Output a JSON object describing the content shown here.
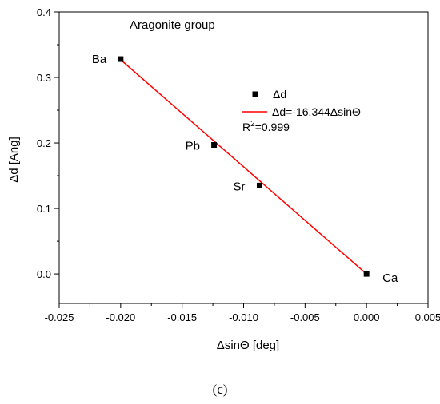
{
  "chart_data": {
    "type": "scatter",
    "title": "",
    "annotation": "Aragonite group",
    "xlabel": "ΔsinΘ [deg]",
    "ylabel": "Δd [Ang]",
    "xlim": [
      -0.025,
      0.005
    ],
    "ylim": [
      -0.045,
      0.4
    ],
    "xticks": [
      "-0.025",
      "-0.020",
      "-0.015",
      "-0.010",
      "-0.005",
      "0.000",
      "0.005"
    ],
    "xtick_values": [
      -0.025,
      -0.02,
      -0.015,
      -0.01,
      -0.005,
      0.0,
      0.005
    ],
    "yticks": [
      "0.0",
      "0.1",
      "0.2",
      "0.3",
      "0.4"
    ],
    "ytick_values": [
      0.0,
      0.1,
      0.2,
      0.3,
      0.4
    ],
    "grid": false,
    "legend_position": "top-right",
    "series": [
      {
        "name": "Δd",
        "kind": "scatter",
        "marker": "square",
        "color": "#000000",
        "points": [
          {
            "label": "Ba",
            "x": -0.02,
            "y": 0.328
          },
          {
            "label": "Pb",
            "x": -0.0124,
            "y": 0.197
          },
          {
            "label": "Sr",
            "x": -0.0087,
            "y": 0.135
          },
          {
            "label": "Ca",
            "x": 0.0,
            "y": 0.0
          }
        ]
      },
      {
        "name": "Δd=-16.344ΔsinΘ",
        "kind": "line",
        "color": "#ff0000",
        "x": [
          -0.02,
          0.0
        ],
        "y": [
          0.327,
          0.0
        ]
      }
    ],
    "r_squared_label": {
      "prefix": "R",
      "sup": "2",
      "value": "=0.999"
    }
  },
  "caption": "(c)"
}
